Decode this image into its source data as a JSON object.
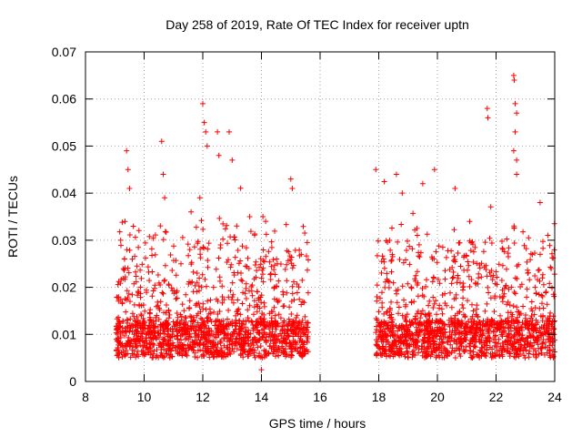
{
  "chart_data": {
    "type": "scatter",
    "title": "Day 258 of 2019, Rate Of TEC Index for receiver uptn",
    "xlabel": "GPS time / hours",
    "ylabel": "ROTI / TECUs",
    "xlim": [
      8,
      24
    ],
    "ylim": [
      0,
      0.07
    ],
    "xticks": [
      8,
      10,
      12,
      14,
      16,
      18,
      20,
      22,
      24
    ],
    "yticks": [
      0,
      0.01,
      0.02,
      0.03,
      0.04,
      0.05,
      0.06,
      0.07
    ],
    "xtick_labels": [
      "8",
      "10",
      "12",
      "14",
      "16",
      "18",
      "20",
      "22",
      "24"
    ],
    "ytick_labels": [
      "0",
      "0.01",
      "0.02",
      "0.03",
      "0.04",
      "0.05",
      "0.06",
      "0.07"
    ],
    "grid": true,
    "marker": "+",
    "marker_color": "#ff0000",
    "segments": [
      {
        "x_start": 9.05,
        "x_end": 15.6,
        "baseline_median": 0.009
      },
      {
        "x_start": 17.9,
        "x_end": 24.0,
        "baseline_median": 0.009
      }
    ],
    "notable_points": [
      {
        "x": 9.4,
        "y": 0.049
      },
      {
        "x": 9.45,
        "y": 0.045
      },
      {
        "x": 9.5,
        "y": 0.041
      },
      {
        "x": 10.6,
        "y": 0.051
      },
      {
        "x": 10.65,
        "y": 0.044
      },
      {
        "x": 10.7,
        "y": 0.039
      },
      {
        "x": 12.0,
        "y": 0.059
      },
      {
        "x": 12.05,
        "y": 0.055
      },
      {
        "x": 12.1,
        "y": 0.053
      },
      {
        "x": 12.15,
        "y": 0.05
      },
      {
        "x": 12.5,
        "y": 0.053
      },
      {
        "x": 12.55,
        "y": 0.048
      },
      {
        "x": 12.9,
        "y": 0.053
      },
      {
        "x": 13.0,
        "y": 0.047
      },
      {
        "x": 13.6,
        "y": 0.035
      },
      {
        "x": 14.05,
        "y": 0.035
      },
      {
        "x": 15.0,
        "y": 0.043
      },
      {
        "x": 15.05,
        "y": 0.041
      },
      {
        "x": 17.9,
        "y": 0.045
      },
      {
        "x": 18.6,
        "y": 0.044
      },
      {
        "x": 18.8,
        "y": 0.04
      },
      {
        "x": 19.5,
        "y": 0.042
      },
      {
        "x": 19.9,
        "y": 0.045
      },
      {
        "x": 20.6,
        "y": 0.041
      },
      {
        "x": 21.1,
        "y": 0.034
      },
      {
        "x": 21.7,
        "y": 0.058
      },
      {
        "x": 21.72,
        "y": 0.056
      },
      {
        "x": 22.6,
        "y": 0.065
      },
      {
        "x": 22.62,
        "y": 0.064
      },
      {
        "x": 22.65,
        "y": 0.059
      },
      {
        "x": 22.7,
        "y": 0.057
      },
      {
        "x": 22.65,
        "y": 0.053
      },
      {
        "x": 22.6,
        "y": 0.049
      },
      {
        "x": 22.7,
        "y": 0.047
      },
      {
        "x": 22.7,
        "y": 0.044
      },
      {
        "x": 23.5,
        "y": 0.038
      },
      {
        "x": 14.0,
        "y": 0.0025
      },
      {
        "x": 9.2,
        "y": 0.03
      },
      {
        "x": 9.35,
        "y": 0.034
      },
      {
        "x": 11.6,
        "y": 0.036
      },
      {
        "x": 11.9,
        "y": 0.039
      }
    ]
  }
}
